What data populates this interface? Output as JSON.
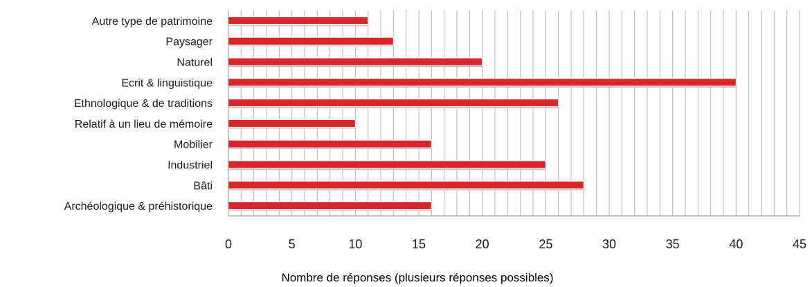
{
  "chart_data": {
    "type": "bar",
    "orientation": "horizontal",
    "categories": [
      "Autre type de patrimoine",
      "Paysager",
      "Naturel",
      "Ecrit & linguistique",
      "Ethnologique & de traditions",
      "Relatif à un lieu de mémoire",
      "Mobilier",
      "Industriel",
      "Bâti",
      "Archéologique & préhistorique"
    ],
    "values": [
      11,
      13,
      20,
      40,
      26,
      10,
      16,
      25,
      28,
      16
    ],
    "title": "",
    "xlabel": "Nombre de réponses (plusieurs réponses possibles)",
    "ylabel": "",
    "xlim": [
      0,
      45
    ],
    "xticks": [
      0,
      5,
      10,
      15,
      20,
      25,
      30,
      35,
      40,
      45
    ],
    "grid": "vertical",
    "legend": "none",
    "bar_color": "#d9252c",
    "grid_color": "#b3b3b3"
  }
}
